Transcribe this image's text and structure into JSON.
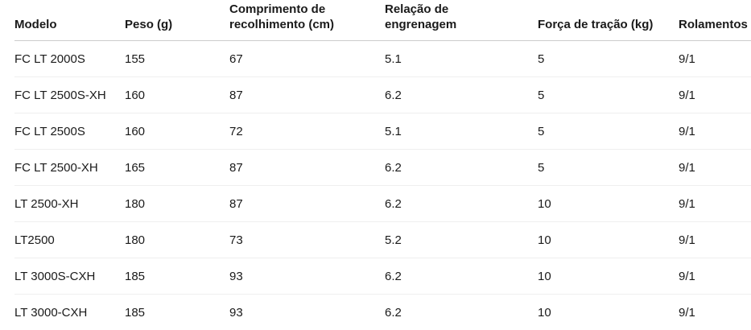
{
  "table": {
    "columns": [
      {
        "id": "modelo",
        "label": "Modelo"
      },
      {
        "id": "peso",
        "label": "Peso (g)"
      },
      {
        "id": "comprimento",
        "label": "Comprimento de\nrecolhimento (cm)"
      },
      {
        "id": "relacao",
        "label": "Relação de\nengrenagem"
      },
      {
        "id": "forca",
        "label": "Força de tração (kg)"
      },
      {
        "id": "rolamentos",
        "label": "Rolamentos"
      }
    ],
    "rows": [
      [
        "FC LT 2000S",
        "155",
        "67",
        "5.1",
        "5",
        "9/1"
      ],
      [
        "FC LT 2500S-XH",
        "160",
        "87",
        "6.2",
        "5",
        "9/1"
      ],
      [
        "FC LT 2500S",
        "160",
        "72",
        "5.1",
        "5",
        "9/1"
      ],
      [
        "FC LT 2500-XH",
        "165",
        "87",
        "6.2",
        "5",
        "9/1"
      ],
      [
        "LT 2500-XH",
        "180",
        "87",
        "6.2",
        "10",
        "9/1"
      ],
      [
        "LT2500",
        "180",
        "73",
        "5.2",
        "10",
        "9/1"
      ],
      [
        "LT 3000S-CXH",
        "185",
        "93",
        "6.2",
        "10",
        "9/1"
      ],
      [
        "LT 3000-CXH",
        "185",
        "93",
        "6.2",
        "10",
        "9/1"
      ]
    ]
  },
  "colors": {
    "background": "#ffffff",
    "text": "#1a1a1a",
    "header_border": "#cccccc",
    "row_border": "#efefef"
  }
}
